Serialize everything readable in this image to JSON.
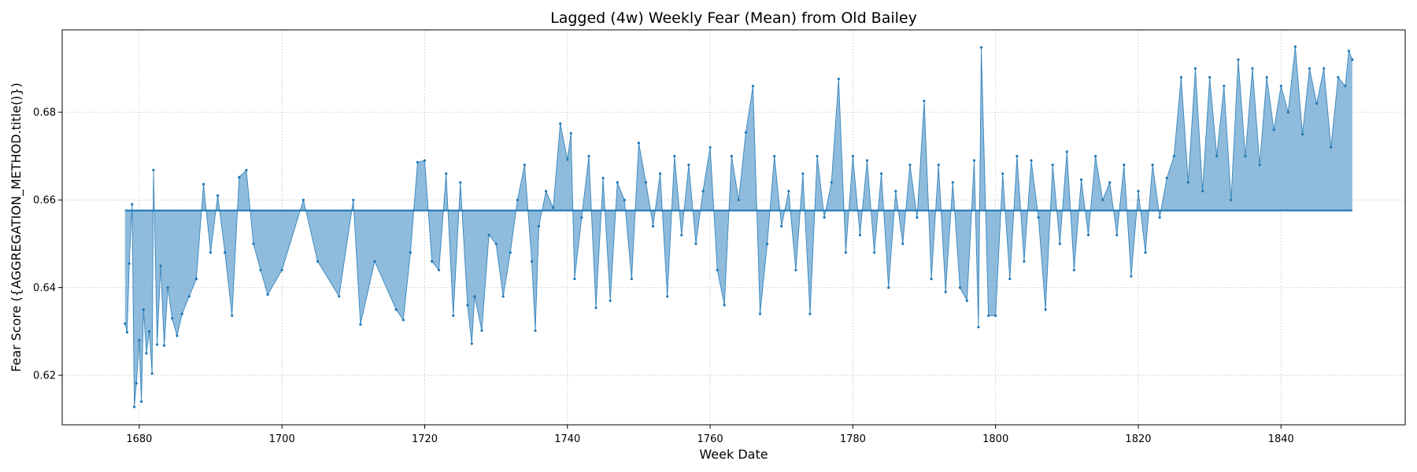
{
  "chart_data": {
    "type": "line",
    "title": "Lagged (4w) Weekly Fear (Mean) from Old Bailey",
    "xlabel": "Week Date",
    "ylabel": "Fear Score ({AGGREGATION_METHOD.title()})",
    "xlim": [
      1669.2,
      1857.4
    ],
    "ylim": [
      0.6087,
      0.6988
    ],
    "x_ticks": [
      "1680",
      "1700",
      "1720",
      "1740",
      "1760",
      "1780",
      "1800",
      "1820",
      "1840"
    ],
    "y_ticks": [
      "0.62",
      "0.64",
      "0.66",
      "0.68"
    ],
    "grid": true,
    "baseline": 0.6576,
    "series": [
      {
        "color": "#1f77b4",
        "fill_color": "#7bafd6",
        "marker": "point",
        "x_range": [
          1678.0,
          1850.0
        ],
        "points": [
          [
            1678.0,
            0.6318
          ],
          [
            1678.3,
            0.6298
          ],
          [
            1678.6,
            0.6455
          ],
          [
            1679.0,
            0.659
          ],
          [
            1679.3,
            0.6128
          ],
          [
            1679.6,
            0.6182
          ],
          [
            1680.0,
            0.628
          ],
          [
            1680.3,
            0.614
          ],
          [
            1680.6,
            0.635
          ],
          [
            1681.0,
            0.625
          ],
          [
            1681.4,
            0.63
          ],
          [
            1681.8,
            0.6204
          ],
          [
            1682.0,
            0.6668
          ],
          [
            1682.5,
            0.627
          ],
          [
            1683.0,
            0.645
          ],
          [
            1683.5,
            0.6268
          ],
          [
            1684.0,
            0.64
          ],
          [
            1684.6,
            0.633
          ],
          [
            1685.3,
            0.629
          ],
          [
            1686.0,
            0.634
          ],
          [
            1687.0,
            0.638
          ],
          [
            1688.0,
            0.642
          ],
          [
            1689.0,
            0.6636
          ],
          [
            1690.0,
            0.648
          ],
          [
            1691.0,
            0.661
          ],
          [
            1692.0,
            0.648
          ],
          [
            1693.0,
            0.6336
          ],
          [
            1694.0,
            0.6652
          ],
          [
            1695.0,
            0.6668
          ],
          [
            1696.0,
            0.65
          ],
          [
            1697.0,
            0.644
          ],
          [
            1698.0,
            0.6384
          ],
          [
            1700.0,
            0.644
          ],
          [
            1703.0,
            0.66
          ],
          [
            1705.0,
            0.646
          ],
          [
            1708.0,
            0.638
          ],
          [
            1710.0,
            0.66
          ],
          [
            1711.0,
            0.6316
          ],
          [
            1713.0,
            0.646
          ],
          [
            1716.0,
            0.635
          ],
          [
            1717.0,
            0.6326
          ],
          [
            1718.0,
            0.648
          ],
          [
            1719.0,
            0.6686
          ],
          [
            1720.0,
            0.669
          ],
          [
            1721.0,
            0.646
          ],
          [
            1722.0,
            0.644
          ],
          [
            1723.0,
            0.666
          ],
          [
            1724.0,
            0.6336
          ],
          [
            1725.0,
            0.664
          ],
          [
            1726.0,
            0.636
          ],
          [
            1726.6,
            0.6272
          ],
          [
            1727.0,
            0.638
          ],
          [
            1728.0,
            0.6302
          ],
          [
            1729.0,
            0.652
          ],
          [
            1730.0,
            0.65
          ],
          [
            1731.0,
            0.638
          ],
          [
            1732.0,
            0.648
          ],
          [
            1733.0,
            0.66
          ],
          [
            1734.0,
            0.668
          ],
          [
            1735.0,
            0.646
          ],
          [
            1735.5,
            0.6302
          ],
          [
            1736.0,
            0.654
          ],
          [
            1737.0,
            0.662
          ],
          [
            1738.0,
            0.6582
          ],
          [
            1739.0,
            0.6774
          ],
          [
            1740.0,
            0.6692
          ],
          [
            1740.5,
            0.6752
          ],
          [
            1741.0,
            0.642
          ],
          [
            1742.0,
            0.656
          ],
          [
            1743.0,
            0.67
          ],
          [
            1744.0,
            0.6354
          ],
          [
            1745.0,
            0.665
          ],
          [
            1746.0,
            0.637
          ],
          [
            1747.0,
            0.664
          ],
          [
            1748.0,
            0.66
          ],
          [
            1749.0,
            0.642
          ],
          [
            1750.0,
            0.673
          ],
          [
            1751.0,
            0.664
          ],
          [
            1752.0,
            0.654
          ],
          [
            1753.0,
            0.666
          ],
          [
            1754.0,
            0.638
          ],
          [
            1755.0,
            0.67
          ],
          [
            1756.0,
            0.652
          ],
          [
            1757.0,
            0.668
          ],
          [
            1758.0,
            0.65
          ],
          [
            1759.0,
            0.662
          ],
          [
            1760.0,
            0.672
          ],
          [
            1761.0,
            0.644
          ],
          [
            1762.0,
            0.636
          ],
          [
            1763.0,
            0.67
          ],
          [
            1764.0,
            0.66
          ],
          [
            1765.0,
            0.6754
          ],
          [
            1766.0,
            0.686
          ],
          [
            1767.0,
            0.634
          ],
          [
            1768.0,
            0.65
          ],
          [
            1769.0,
            0.67
          ],
          [
            1770.0,
            0.654
          ],
          [
            1771.0,
            0.662
          ],
          [
            1772.0,
            0.644
          ],
          [
            1773.0,
            0.666
          ],
          [
            1774.0,
            0.634
          ],
          [
            1775.0,
            0.67
          ],
          [
            1776.0,
            0.656
          ],
          [
            1777.0,
            0.664
          ],
          [
            1778.0,
            0.6876
          ],
          [
            1779.0,
            0.648
          ],
          [
            1780.0,
            0.67
          ],
          [
            1781.0,
            0.652
          ],
          [
            1782.0,
            0.669
          ],
          [
            1783.0,
            0.648
          ],
          [
            1784.0,
            0.666
          ],
          [
            1785.0,
            0.64
          ],
          [
            1786.0,
            0.662
          ],
          [
            1787.0,
            0.65
          ],
          [
            1788.0,
            0.668
          ],
          [
            1789.0,
            0.656
          ],
          [
            1790.0,
            0.6826
          ],
          [
            1791.0,
            0.642
          ],
          [
            1792.0,
            0.668
          ],
          [
            1793.0,
            0.639
          ],
          [
            1794.0,
            0.664
          ],
          [
            1795.0,
            0.64
          ],
          [
            1796.0,
            0.637
          ],
          [
            1797.0,
            0.669
          ],
          [
            1797.6,
            0.631
          ],
          [
            1798.0,
            0.6948
          ],
          [
            1799.0,
            0.6336
          ],
          [
            1800.0,
            0.6336
          ],
          [
            1801.0,
            0.666
          ],
          [
            1802.0,
            0.642
          ],
          [
            1803.0,
            0.67
          ],
          [
            1804.0,
            0.646
          ],
          [
            1805.0,
            0.669
          ],
          [
            1806.0,
            0.656
          ],
          [
            1807.0,
            0.635
          ],
          [
            1808.0,
            0.668
          ],
          [
            1809.0,
            0.65
          ],
          [
            1810.0,
            0.671
          ],
          [
            1811.0,
            0.644
          ],
          [
            1812.0,
            0.6646
          ],
          [
            1813.0,
            0.652
          ],
          [
            1814.0,
            0.67
          ],
          [
            1815.0,
            0.66
          ],
          [
            1816.0,
            0.664
          ],
          [
            1817.0,
            0.652
          ],
          [
            1818.0,
            0.668
          ],
          [
            1819.0,
            0.6426
          ],
          [
            1820.0,
            0.662
          ],
          [
            1821.0,
            0.648
          ],
          [
            1822.0,
            0.668
          ],
          [
            1823.0,
            0.656
          ],
          [
            1824.0,
            0.665
          ],
          [
            1825.0,
            0.67
          ],
          [
            1826.0,
            0.688
          ],
          [
            1827.0,
            0.664
          ],
          [
            1828.0,
            0.69
          ],
          [
            1829.0,
            0.662
          ],
          [
            1830.0,
            0.688
          ],
          [
            1831.0,
            0.67
          ],
          [
            1832.0,
            0.686
          ],
          [
            1833.0,
            0.66
          ],
          [
            1834.0,
            0.692
          ],
          [
            1835.0,
            0.67
          ],
          [
            1836.0,
            0.69
          ],
          [
            1837.0,
            0.668
          ],
          [
            1838.0,
            0.688
          ],
          [
            1839.0,
            0.676
          ],
          [
            1840.0,
            0.686
          ],
          [
            1841.0,
            0.68
          ],
          [
            1842.0,
            0.695
          ],
          [
            1843.0,
            0.675
          ],
          [
            1844.0,
            0.69
          ],
          [
            1845.0,
            0.682
          ],
          [
            1846.0,
            0.69
          ],
          [
            1847.0,
            0.672
          ],
          [
            1848.0,
            0.688
          ],
          [
            1849.0,
            0.686
          ],
          [
            1849.5,
            0.694
          ],
          [
            1850.0,
            0.692
          ]
        ]
      }
    ]
  }
}
